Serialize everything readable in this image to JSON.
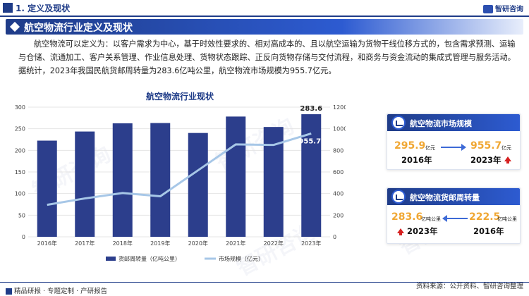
{
  "header": {
    "section_title": "1. 定义及现状",
    "brand": "智研咨询"
  },
  "banner": {
    "title": "航空物流行业定义及现状"
  },
  "intro": {
    "paragraph": "航空物流可以定义为：以客户需求为中心，基于时效性要求的、相对高成本的、且以航空运输为货物干线位移方式的，包含需求预测、运输与仓储、流通加工、客户关系管理、作业信息处理、货物状态跟踪、正反向货物存储与交付流程，和商务与资金流动的集成式管理与服务活动。据统计，2023年我国民航货邮周转量为283.6亿吨公里，航空物流市场规模为955.7亿元。"
  },
  "chart_data": {
    "type": "bar",
    "title": "航空物流行业现状",
    "categories": [
      "2016年",
      "2017年",
      "2018年",
      "2019年",
      "2020年",
      "2021年",
      "2022年",
      "2023年"
    ],
    "series": [
      {
        "name": "货邮周转量（亿吨公里）",
        "type": "bar",
        "axis": "left",
        "color": "#2c3e8c",
        "values": [
          222.5,
          243.6,
          262.5,
          263.2,
          240.2,
          278.2,
          254.1,
          283.6
        ]
      },
      {
        "name": "市场规模（亿元）",
        "type": "line",
        "axis": "right",
        "color": "#a7c7e7",
        "values": [
          295.9,
          355,
          405,
          375,
          615,
          855,
          850,
          955.7
        ]
      }
    ],
    "y_left": {
      "min": 0,
      "max": 300,
      "ticks": [
        0,
        50,
        100,
        150,
        200,
        250,
        300
      ]
    },
    "y_right": {
      "min": 0,
      "max": 1200,
      "ticks": [
        0,
        200,
        400,
        600,
        800,
        1000,
        1200
      ]
    },
    "labels": {
      "bar_last": "283.6",
      "line_last": "955.7"
    },
    "legend_position": "bottom"
  },
  "market_card": {
    "title": "航空物流市场规模",
    "from_value": "295.9",
    "from_unit": "亿元",
    "from_year": "2016年",
    "to_value": "955.7",
    "to_unit": "亿元",
    "to_year": "2023年"
  },
  "cargo_card": {
    "title": "航空物流货邮周转量",
    "to_value": "283.6",
    "to_unit": "亿吨公里",
    "to_year": "2023年",
    "from_value": "222.5",
    "from_unit": "亿吨公里",
    "from_year": "2016年"
  },
  "footer": {
    "left": "精品研报 · 专题定制 · 产研报告",
    "right": "资料来源：公开资料、智研咨询整理"
  },
  "watermark": {
    "text": "智研咨询"
  }
}
